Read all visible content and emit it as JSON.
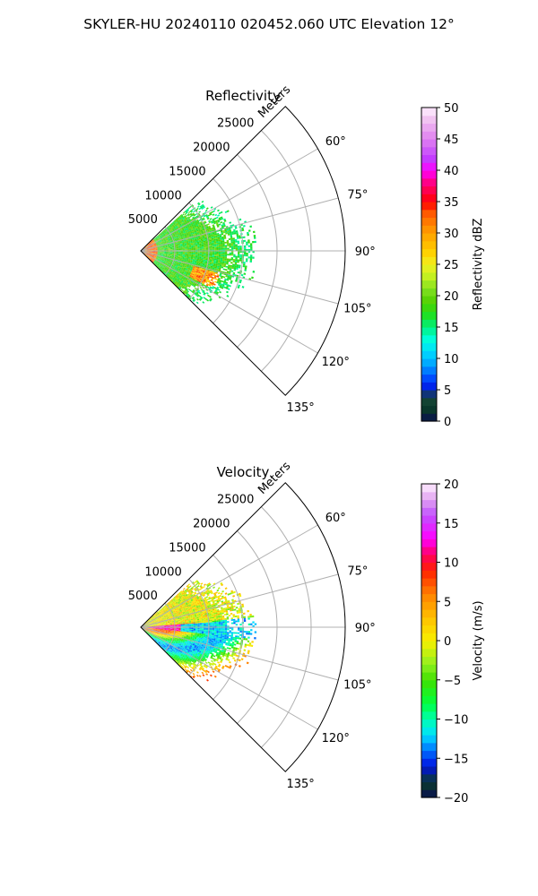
{
  "figure_title": "SKYLER-HU  20240110  020452.060 UTC Elevation 12°",
  "colors": {
    "grid": "#b0b0b0",
    "frame": "#000000",
    "background": "#ffffff"
  },
  "chart_data": [
    {
      "type": "heatmap",
      "subtype": "polar-sector (PPI)",
      "title": "Reflectivity",
      "radial_axis_label": "Meters",
      "radial_ticks": [
        5000,
        10000,
        15000,
        20000,
        25000
      ],
      "radial_tick_labels": [
        "5000",
        "10000",
        "15000",
        "20000",
        "25000"
      ],
      "r_max": 30000,
      "azimuth_range_deg": [
        45,
        135
      ],
      "azimuth_ticks_deg": [
        60,
        75,
        90,
        105,
        120,
        135
      ],
      "azimuth_tick_labels": [
        "60°",
        "75°",
        "90°",
        "105°",
        "120°",
        "135°"
      ],
      "grid": true,
      "data_extent_m": 17000,
      "colorbar": {
        "label": "Reflectivity dBZ",
        "min": 0,
        "max": 50,
        "ticks": [
          0,
          5,
          10,
          15,
          20,
          25,
          30,
          35,
          40,
          45,
          50
        ],
        "tick_labels": [
          "0",
          "5",
          "10",
          "15",
          "20",
          "25",
          "30",
          "35",
          "40",
          "45",
          "50"
        ],
        "stops": [
          {
            "v": 0,
            "c": "#0a1050"
          },
          {
            "v": 2,
            "c": "#0a3a2a"
          },
          {
            "v": 4,
            "c": "#1a4a3a"
          },
          {
            "v": 5,
            "c": "#0010e0"
          },
          {
            "v": 7,
            "c": "#0050ff"
          },
          {
            "v": 9,
            "c": "#00a0ff"
          },
          {
            "v": 11,
            "c": "#00d8ff"
          },
          {
            "v": 13,
            "c": "#00ffe0"
          },
          {
            "v": 15,
            "c": "#00f080"
          },
          {
            "v": 17,
            "c": "#20e020"
          },
          {
            "v": 19,
            "c": "#50d000"
          },
          {
            "v": 21,
            "c": "#80e020"
          },
          {
            "v": 23,
            "c": "#c0f020"
          },
          {
            "v": 25,
            "c": "#f0f020"
          },
          {
            "v": 27,
            "c": "#ffd000"
          },
          {
            "v": 30,
            "c": "#ffa000"
          },
          {
            "v": 33,
            "c": "#ff6000"
          },
          {
            "v": 35,
            "c": "#ff0000"
          },
          {
            "v": 38,
            "c": "#ff0080"
          },
          {
            "v": 40,
            "c": "#ff00ff"
          },
          {
            "v": 42,
            "c": "#c040ff"
          },
          {
            "v": 45,
            "c": "#e080f0"
          },
          {
            "v": 48,
            "c": "#f0c0f0"
          },
          {
            "v": 50,
            "c": "#fff0ff"
          }
        ]
      },
      "dominant_value": 18
    },
    {
      "type": "heatmap",
      "subtype": "polar-sector (PPI)",
      "title": "Velocity",
      "radial_axis_label": "Meters",
      "radial_ticks": [
        5000,
        10000,
        15000,
        20000,
        25000
      ],
      "radial_tick_labels": [
        "5000",
        "10000",
        "15000",
        "20000",
        "25000"
      ],
      "r_max": 30000,
      "azimuth_range_deg": [
        45,
        135
      ],
      "azimuth_ticks_deg": [
        60,
        75,
        90,
        105,
        120,
        135
      ],
      "azimuth_tick_labels": [
        "60°",
        "75°",
        "90°",
        "105°",
        "120°",
        "135°"
      ],
      "grid": true,
      "data_extent_m": 17000,
      "colorbar": {
        "label": "Velocity (m/s)",
        "min": -20,
        "max": 20,
        "ticks": [
          -20,
          -15,
          -10,
          -5,
          0,
          5,
          10,
          15,
          20
        ],
        "tick_labels": [
          "−20",
          "−15",
          "−10",
          "−5",
          "0",
          "5",
          "10",
          "15",
          "20"
        ],
        "stops": [
          {
            "v": -20,
            "c": "#0a1050"
          },
          {
            "v": -18,
            "c": "#0a3a2a"
          },
          {
            "v": -16,
            "c": "#0010e0"
          },
          {
            "v": -14,
            "c": "#0070ff"
          },
          {
            "v": -12,
            "c": "#00e0ff"
          },
          {
            "v": -10,
            "c": "#00ffb0"
          },
          {
            "v": -8,
            "c": "#00ff40"
          },
          {
            "v": -5,
            "c": "#40e000"
          },
          {
            "v": -3,
            "c": "#90f020"
          },
          {
            "v": 0,
            "c": "#f8f000"
          },
          {
            "v": 3,
            "c": "#ffc000"
          },
          {
            "v": 6,
            "c": "#ff8000"
          },
          {
            "v": 9,
            "c": "#ff2000"
          },
          {
            "v": 11,
            "c": "#ff0060"
          },
          {
            "v": 13,
            "c": "#ff00ff"
          },
          {
            "v": 16,
            "c": "#c050ff"
          },
          {
            "v": 18,
            "c": "#e0a0f0"
          },
          {
            "v": 20,
            "c": "#fff0ff"
          }
        ]
      },
      "dominant_value": -2
    }
  ]
}
